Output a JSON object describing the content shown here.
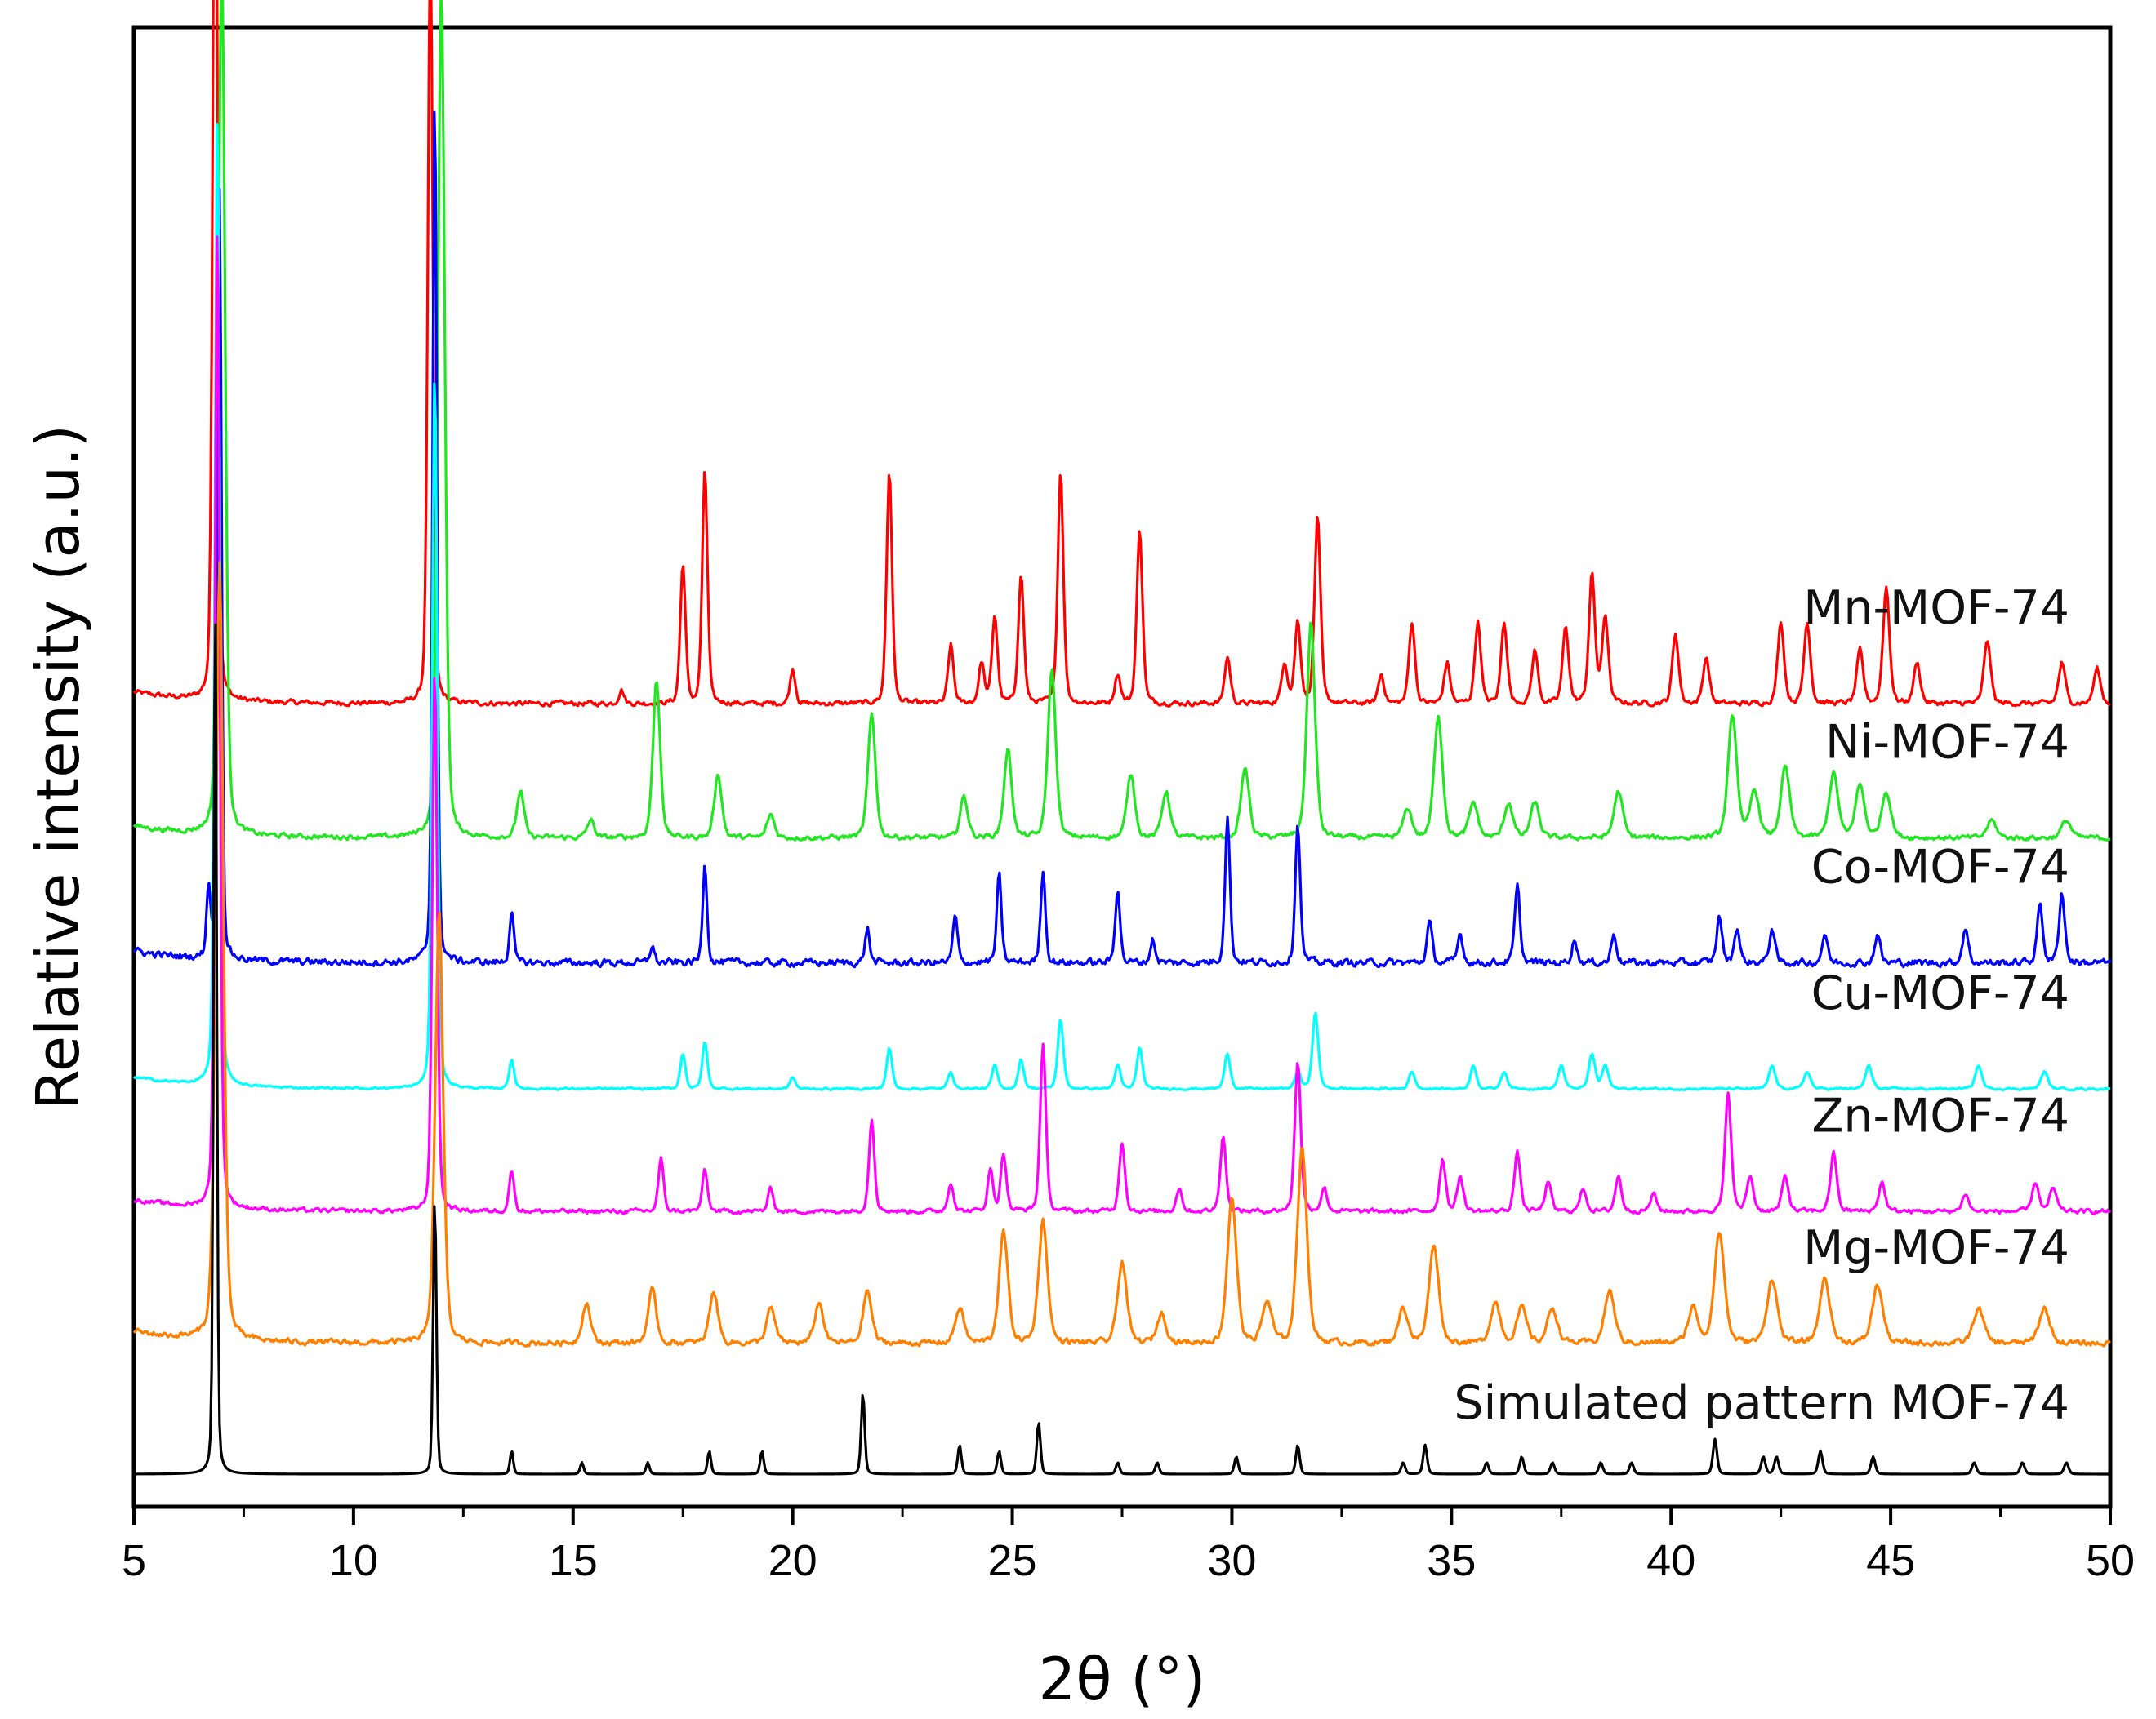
{
  "chart_data": {
    "type": "line",
    "title": "",
    "xlabel": "2θ (°)",
    "ylabel": "Relative intensity (a.u.)",
    "xlim": [
      5,
      50
    ],
    "x_ticks": [
      5,
      10,
      15,
      20,
      25,
      30,
      35,
      40,
      45,
      50
    ],
    "x_minor_step": 2.5,
    "y_ticks": [],
    "stacked_offsets": true,
    "series": [
      {
        "name": "Mn-MOF-74",
        "color": "#ff0000",
        "baseline": 6.6,
        "noise": 0.035,
        "width_scale": 1.0,
        "peaks": [
          [
            6.85,
            8.6
          ],
          [
            11.75,
            6.6
          ],
          [
            16.1,
            0.12
          ],
          [
            17.5,
            1.2
          ],
          [
            18.0,
            2.0
          ],
          [
            20.0,
            0.3
          ],
          [
            22.2,
            2.0
          ],
          [
            23.6,
            0.5
          ],
          [
            24.3,
            0.35
          ],
          [
            24.6,
            0.75
          ],
          [
            25.2,
            1.1
          ],
          [
            26.1,
            2.0
          ],
          [
            27.4,
            0.25
          ],
          [
            27.9,
            1.5
          ],
          [
            29.9,
            0.4
          ],
          [
            31.2,
            0.35
          ],
          [
            31.5,
            0.7
          ],
          [
            31.95,
            1.6
          ],
          [
            33.4,
            0.25
          ],
          [
            34.1,
            0.7
          ],
          [
            34.9,
            0.35
          ],
          [
            35.6,
            0.7
          ],
          [
            36.2,
            0.7
          ],
          [
            36.9,
            0.45
          ],
          [
            37.6,
            0.65
          ],
          [
            38.2,
            1.1
          ],
          [
            38.5,
            0.75
          ],
          [
            40.1,
            0.6
          ],
          [
            40.8,
            0.4
          ],
          [
            42.5,
            0.7
          ],
          [
            43.1,
            0.7
          ],
          [
            44.3,
            0.45
          ],
          [
            44.9,
            1.0
          ],
          [
            45.6,
            0.35
          ],
          [
            47.2,
            0.55
          ],
          [
            48.9,
            0.35
          ],
          [
            49.7,
            0.3
          ]
        ]
      },
      {
        "name": "Ni-MOF-74",
        "color": "#22e622",
        "baseline": 5.45,
        "noise": 0.035,
        "width_scale": 1.4,
        "peaks": [
          [
            7.0,
            7.6
          ],
          [
            12.0,
            7.3
          ],
          [
            13.8,
            0.4
          ],
          [
            15.4,
            0.15
          ],
          [
            16.9,
            1.35
          ],
          [
            18.3,
            0.55
          ],
          [
            19.5,
            0.2
          ],
          [
            21.8,
            1.05
          ],
          [
            23.9,
            0.35
          ],
          [
            24.9,
            0.75
          ],
          [
            25.9,
            1.45
          ],
          [
            27.7,
            0.55
          ],
          [
            28.5,
            0.4
          ],
          [
            30.3,
            0.6
          ],
          [
            31.8,
            1.85
          ],
          [
            34.0,
            0.25
          ],
          [
            34.7,
            1.05
          ],
          [
            35.5,
            0.3
          ],
          [
            36.3,
            0.3
          ],
          [
            36.9,
            0.3
          ],
          [
            38.8,
            0.4
          ],
          [
            41.4,
            1.05
          ],
          [
            41.9,
            0.4
          ],
          [
            42.6,
            0.6
          ],
          [
            43.7,
            0.55
          ],
          [
            44.3,
            0.45
          ],
          [
            44.9,
            0.4
          ],
          [
            47.3,
            0.15
          ],
          [
            49.0,
            0.15
          ]
        ]
      },
      {
        "name": "Co-MOF-74",
        "color": "#0000ff",
        "baseline": 4.38,
        "noise": 0.05,
        "width_scale": 0.85,
        "peaks": [
          [
            6.7,
            0.6
          ],
          [
            6.95,
            6.6
          ],
          [
            11.85,
            7.5
          ],
          [
            13.6,
            0.45
          ],
          [
            16.8,
            0.15
          ],
          [
            18.0,
            0.85
          ],
          [
            21.7,
            0.3
          ],
          [
            23.7,
            0.4
          ],
          [
            24.7,
            0.75
          ],
          [
            25.7,
            0.8
          ],
          [
            27.4,
            0.65
          ],
          [
            28.2,
            0.2
          ],
          [
            29.9,
            1.25
          ],
          [
            31.5,
            1.2
          ],
          [
            34.5,
            0.35
          ],
          [
            35.2,
            0.25
          ],
          [
            36.5,
            0.65
          ],
          [
            37.8,
            0.2
          ],
          [
            38.7,
            0.25
          ],
          [
            41.1,
            0.4
          ],
          [
            41.5,
            0.3
          ],
          [
            42.3,
            0.3
          ],
          [
            43.5,
            0.25
          ],
          [
            44.7,
            0.25
          ],
          [
            46.7,
            0.3
          ],
          [
            48.4,
            0.5
          ],
          [
            48.9,
            0.6
          ]
        ]
      },
      {
        "name": "Cu-MOF-74",
        "color": "#00ffff",
        "baseline": 3.3,
        "noise": 0.015,
        "width_scale": 1.0,
        "peaks": [
          [
            6.9,
            8.4
          ],
          [
            11.85,
            6.15
          ],
          [
            13.6,
            0.25
          ],
          [
            17.5,
            0.3
          ],
          [
            18.0,
            0.4
          ],
          [
            20.0,
            0.1
          ],
          [
            22.2,
            0.35
          ],
          [
            23.6,
            0.15
          ],
          [
            24.6,
            0.2
          ],
          [
            25.2,
            0.25
          ],
          [
            26.1,
            0.6
          ],
          [
            27.4,
            0.2
          ],
          [
            27.9,
            0.35
          ],
          [
            29.9,
            0.3
          ],
          [
            31.5,
            0.15
          ],
          [
            31.9,
            0.65
          ],
          [
            34.1,
            0.15
          ],
          [
            35.5,
            0.2
          ],
          [
            36.2,
            0.15
          ],
          [
            37.5,
            0.2
          ],
          [
            38.2,
            0.3
          ],
          [
            38.5,
            0.2
          ],
          [
            42.3,
            0.2
          ],
          [
            43.1,
            0.15
          ],
          [
            44.5,
            0.2
          ],
          [
            47.0,
            0.2
          ],
          [
            48.5,
            0.15
          ]
        ]
      },
      {
        "name": "Zn-MOF-74",
        "color": "#ff00ff",
        "baseline": 2.25,
        "noise": 0.03,
        "width_scale": 1.0,
        "peaks": [
          [
            6.9,
            8.5
          ],
          [
            11.85,
            4.65
          ],
          [
            13.6,
            0.35
          ],
          [
            17.0,
            0.45
          ],
          [
            18.0,
            0.35
          ],
          [
            19.5,
            0.2
          ],
          [
            21.8,
            0.8
          ],
          [
            23.6,
            0.25
          ],
          [
            24.5,
            0.35
          ],
          [
            24.8,
            0.5
          ],
          [
            25.7,
            1.45
          ],
          [
            27.5,
            0.6
          ],
          [
            28.8,
            0.2
          ],
          [
            29.8,
            0.65
          ],
          [
            31.5,
            1.3
          ],
          [
            32.1,
            0.2
          ],
          [
            34.8,
            0.45
          ],
          [
            35.2,
            0.3
          ],
          [
            36.5,
            0.5
          ],
          [
            37.2,
            0.25
          ],
          [
            38.0,
            0.2
          ],
          [
            38.8,
            0.3
          ],
          [
            39.6,
            0.15
          ],
          [
            41.3,
            1.0
          ],
          [
            41.8,
            0.3
          ],
          [
            42.6,
            0.3
          ],
          [
            43.7,
            0.5
          ],
          [
            44.8,
            0.25
          ],
          [
            46.7,
            0.15
          ],
          [
            48.3,
            0.25
          ],
          [
            48.7,
            0.2
          ]
        ]
      },
      {
        "name": "Mg-MOF-74",
        "color": "#ff8000",
        "baseline": 1.12,
        "noise": 0.04,
        "width_scale": 1.6,
        "peaks": [
          [
            6.95,
            6.65
          ],
          [
            11.95,
            3.7
          ],
          [
            15.3,
            0.35
          ],
          [
            16.8,
            0.45
          ],
          [
            18.2,
            0.45
          ],
          [
            19.5,
            0.3
          ],
          [
            20.6,
            0.35
          ],
          [
            21.7,
            0.45
          ],
          [
            23.8,
            0.3
          ],
          [
            24.8,
            0.95
          ],
          [
            25.7,
            1.05
          ],
          [
            27.5,
            0.7
          ],
          [
            28.4,
            0.25
          ],
          [
            30.0,
            1.25
          ],
          [
            30.8,
            0.35
          ],
          [
            31.6,
            1.7
          ],
          [
            33.9,
            0.3
          ],
          [
            34.6,
            0.85
          ],
          [
            36.0,
            0.35
          ],
          [
            36.6,
            0.3
          ],
          [
            37.3,
            0.3
          ],
          [
            38.6,
            0.45
          ],
          [
            40.5,
            0.3
          ],
          [
            41.1,
            0.95
          ],
          [
            42.3,
            0.55
          ],
          [
            43.5,
            0.55
          ],
          [
            44.7,
            0.5
          ],
          [
            47.0,
            0.3
          ],
          [
            48.5,
            0.3
          ]
        ]
      },
      {
        "name": "Simulated pattern MOF-74",
        "color": "#000000",
        "baseline": 0.0,
        "noise": 0.0,
        "width_scale": 0.65,
        "peaks": [
          [
            6.85,
            7.65
          ],
          [
            11.85,
            2.4
          ],
          [
            13.6,
            0.2
          ],
          [
            15.2,
            0.1
          ],
          [
            16.7,
            0.1
          ],
          [
            18.1,
            0.2
          ],
          [
            19.3,
            0.2
          ],
          [
            21.6,
            0.7
          ],
          [
            23.8,
            0.25
          ],
          [
            24.7,
            0.2
          ],
          [
            25.6,
            0.45
          ],
          [
            27.4,
            0.1
          ],
          [
            28.3,
            0.1
          ],
          [
            30.1,
            0.15
          ],
          [
            31.5,
            0.25
          ],
          [
            33.9,
            0.1
          ],
          [
            34.4,
            0.25
          ],
          [
            35.8,
            0.1
          ],
          [
            36.6,
            0.15
          ],
          [
            37.3,
            0.1
          ],
          [
            38.4,
            0.1
          ],
          [
            39.1,
            0.1
          ],
          [
            41.0,
            0.3
          ],
          [
            42.1,
            0.15
          ],
          [
            42.4,
            0.15
          ],
          [
            43.4,
            0.2
          ],
          [
            44.6,
            0.15
          ],
          [
            46.9,
            0.1
          ],
          [
            48.0,
            0.1
          ],
          [
            49.0,
            0.1
          ]
        ]
      }
    ]
  }
}
